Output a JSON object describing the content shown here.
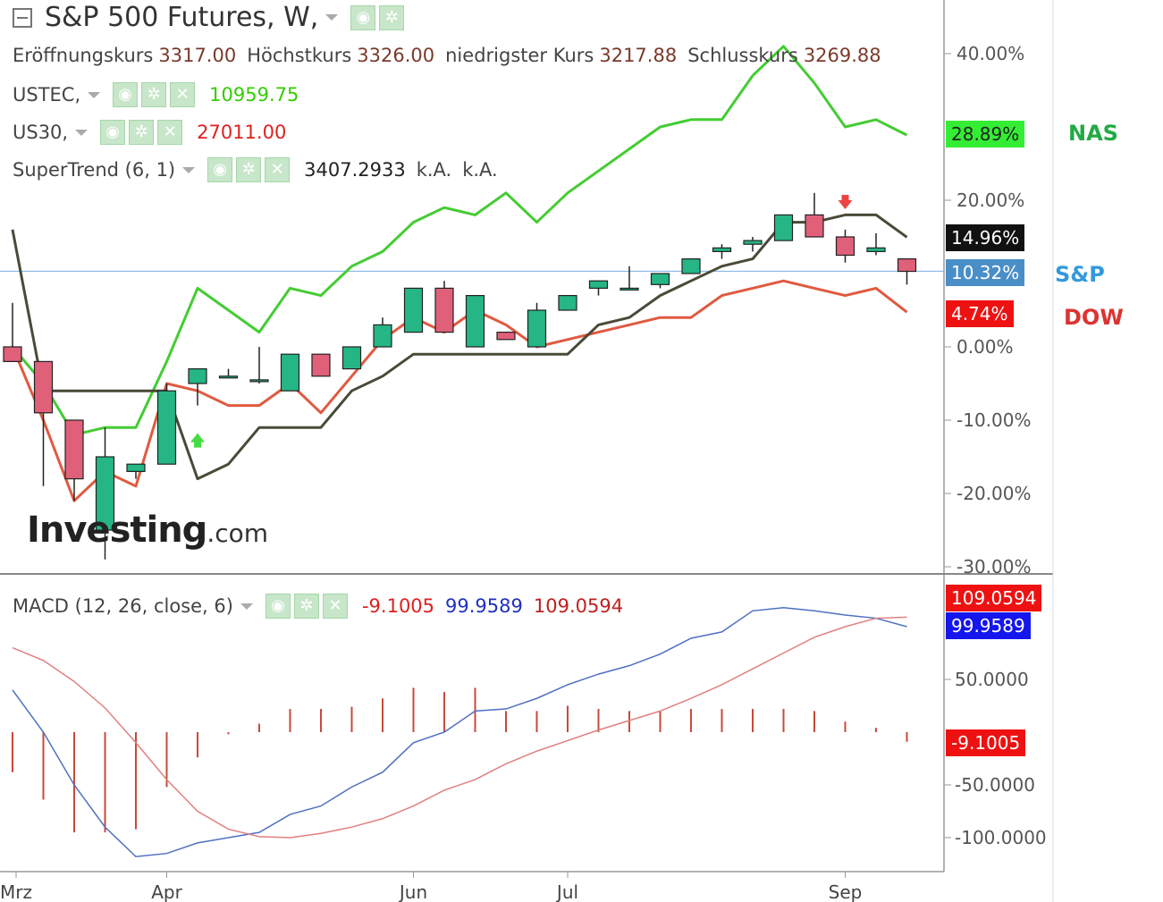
{
  "header": {
    "title": "S&P 500 Futures, W,",
    "ohlc": [
      {
        "label": "Eröffnungskurs",
        "value": "3317.00"
      },
      {
        "label": "Höchstkurs",
        "value": "3326.00"
      },
      {
        "label": "niedrigster Kurs",
        "value": "3217.88"
      },
      {
        "label": "Schlusskurs",
        "value": "3269.88"
      }
    ]
  },
  "legend": {
    "ustec": {
      "label": "USTEC,",
      "value": "10959.75",
      "color": "#22cc22"
    },
    "us30": {
      "label": "US30,",
      "value": "27011.00",
      "color": "#e02020"
    },
    "supertrend": {
      "label": "SuperTrend (6, 1)",
      "value": "3407.2933",
      "na1": "k.A.",
      "na2": "k.A."
    },
    "macd": {
      "label": "MACD (12, 26, close, 6)",
      "hist": "-9.1005",
      "macd": "99.9589",
      "signal": "109.0594"
    }
  },
  "badges": {
    "nas": "28.89%",
    "st": "14.96%",
    "sp": "10.32%",
    "dow": "4.74%",
    "m_signal": "109.0594",
    "m_macd": "99.9589",
    "m_hist": "-9.1005"
  },
  "side_labels": {
    "nas": "NAS",
    "sp": "S&P",
    "dow": "DOW"
  },
  "watermark": {
    "brand": "Investing",
    "suffix": ".com"
  },
  "colors": {
    "up": "#26b585",
    "down": "#e0607a",
    "nas": "#44cc33",
    "dow": "#e05a40",
    "supertrend": "#4a4a38",
    "macd": "#5070c0",
    "signal": "#e08080",
    "hist": "#c84a3a"
  },
  "chart_data": [
    {
      "type": "candlestick",
      "title": "S&P 500 Futures, W,",
      "x_ticks": [
        "Mrz",
        "Apr",
        "Jun",
        "Jul",
        "Sep"
      ],
      "y_ticks": [
        "40.00%",
        "20.00%",
        "0.00%",
        "-10.00%",
        "-20.00%",
        "-30.00%"
      ],
      "ylim": [
        -30,
        46
      ],
      "candles": [
        {
          "o": 0,
          "h": 6,
          "l": -2,
          "c": -2
        },
        {
          "o": -2,
          "h": -2,
          "l": -19,
          "c": -9
        },
        {
          "o": -10,
          "h": -10,
          "l": -21,
          "c": -18
        },
        {
          "o": -25,
          "h": -11,
          "l": -29,
          "c": -15
        },
        {
          "o": -17,
          "h": -16,
          "l": -18,
          "c": -16
        },
        {
          "o": -16,
          "h": -5,
          "l": -16,
          "c": -6
        },
        {
          "o": -5,
          "h": -3,
          "l": -8,
          "c": -3
        },
        {
          "o": -4,
          "h": -3,
          "l": -4,
          "c": -4
        },
        {
          "o": -4.5,
          "h": 0,
          "l": -5,
          "c": -4.5
        },
        {
          "o": -6,
          "h": -1,
          "l": -6,
          "c": -1
        },
        {
          "o": -1,
          "h": -1,
          "l": -4,
          "c": -4
        },
        {
          "o": -3,
          "h": 0,
          "l": -3,
          "c": 0
        },
        {
          "o": 0,
          "h": 4,
          "l": 0,
          "c": 3
        },
        {
          "o": 2,
          "h": 8,
          "l": 2,
          "c": 8
        },
        {
          "o": 8,
          "h": 9,
          "l": 2,
          "c": 2
        },
        {
          "o": 0,
          "h": 7,
          "l": 0,
          "c": 7
        },
        {
          "o": 2,
          "h": 2,
          "l": 1,
          "c": 1
        },
        {
          "o": 0,
          "h": 6,
          "l": 0,
          "c": 5
        },
        {
          "o": 5,
          "h": 7,
          "l": 5,
          "c": 7
        },
        {
          "o": 8,
          "h": 9,
          "l": 7,
          "c": 9
        },
        {
          "o": 8,
          "h": 11,
          "l": 8,
          "c": 8
        },
        {
          "o": 8.5,
          "h": 10,
          "l": 8,
          "c": 10
        },
        {
          "o": 10,
          "h": 12,
          "l": 10,
          "c": 12
        },
        {
          "o": 13,
          "h": 14,
          "l": 12,
          "c": 13.5
        },
        {
          "o": 14,
          "h": 15,
          "l": 13,
          "c": 14.5
        },
        {
          "o": 14.5,
          "h": 18,
          "l": 14.5,
          "c": 18
        },
        {
          "o": 18,
          "h": 21,
          "l": 15,
          "c": 15
        },
        {
          "o": 15,
          "h": 16,
          "l": 11.5,
          "c": 12.5
        },
        {
          "o": 13,
          "h": 15.5,
          "l": 12.5,
          "c": 13.5
        },
        {
          "o": 12,
          "h": 12,
          "l": 8.5,
          "c": 10.3
        }
      ],
      "series": [
        {
          "name": "USTEC",
          "values": [
            0,
            -5,
            -12,
            -11,
            -11,
            -2,
            8,
            5,
            2,
            8,
            7,
            11,
            13,
            17,
            19,
            18,
            21,
            17,
            21,
            24,
            27,
            30,
            31,
            31,
            37,
            41,
            36,
            30,
            31,
            28.89
          ]
        },
        {
          "name": "US30",
          "values": [
            0,
            -10,
            -21,
            -17,
            -19,
            -5,
            -6,
            -8,
            -8,
            -5,
            -9,
            -4,
            1,
            4,
            2,
            5,
            3,
            0,
            1,
            2,
            3,
            4,
            4,
            7,
            8,
            9,
            8,
            7,
            8,
            4.74
          ]
        },
        {
          "name": "SuperTrend",
          "values": [
            16,
            -6,
            -6,
            -6,
            -6,
            -6,
            -18,
            -16,
            -11,
            -11,
            -11,
            -6,
            -4,
            -1,
            -1,
            -1,
            -1,
            -1,
            -1,
            3,
            4,
            7,
            9,
            11,
            12,
            17,
            17,
            18,
            18,
            14.96
          ]
        }
      ],
      "reference": {
        "name": "S&P",
        "value": 10.32
      }
    },
    {
      "type": "macd",
      "y_ticks": [
        "50.0000",
        "-50.0000",
        "-100.0000"
      ],
      "ylim": [
        -130,
        140
      ],
      "macd": [
        40,
        0,
        -50,
        -90,
        -118,
        -115,
        -105,
        -100,
        -95,
        -78,
        -70,
        -52,
        -38,
        -10,
        0,
        20,
        22,
        32,
        45,
        55,
        63,
        74,
        89,
        95,
        115,
        118,
        115,
        111,
        108,
        100
      ],
      "signal": [
        80,
        68,
        48,
        23,
        -10,
        -45,
        -75,
        -92,
        -99,
        -100,
        -96,
        -90,
        -82,
        -70,
        -55,
        -45,
        -30,
        -18,
        -8,
        2,
        11,
        20,
        32,
        45,
        60,
        75,
        90,
        100,
        108,
        109
      ],
      "histogram": [
        -38,
        -64,
        -95,
        -95,
        -92,
        -52,
        -24,
        -2,
        8,
        22,
        22,
        24,
        32,
        42,
        38,
        42,
        20,
        20,
        25,
        22,
        20,
        20,
        22,
        22,
        22,
        22,
        20,
        10,
        4,
        -9.1
      ]
    }
  ]
}
